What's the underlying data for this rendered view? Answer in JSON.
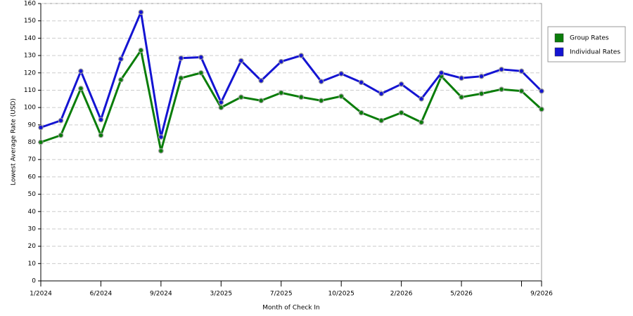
{
  "chart_data": {
    "type": "line",
    "x_label": "Month of Check In",
    "y_label": "Lowest Average Rate (USD)",
    "categories": [
      "1/2024",
      null,
      null,
      "6/2024",
      null,
      null,
      "9/2024",
      null,
      null,
      "3/2025",
      null,
      null,
      "7/2025",
      null,
      null,
      "10/2025",
      null,
      null,
      "2/2026",
      null,
      null,
      "5/2026",
      null,
      null,
      null,
      "9/2026"
    ],
    "series": [
      {
        "name": "Group Rates",
        "color": "#0a7d0a",
        "values": [
          80,
          84,
          111,
          84,
          116,
          133,
          75,
          117,
          120,
          100,
          106,
          104,
          108.5,
          106,
          104,
          106.5,
          97,
          92.5,
          97,
          91.5,
          118,
          106,
          108,
          110.5,
          109.5,
          99
        ]
      },
      {
        "name": "Individual Rates",
        "color": "#1414d2",
        "values": [
          88.5,
          92.5,
          121,
          93,
          128,
          155,
          83,
          128.5,
          129,
          103,
          127,
          115.5,
          126.5,
          130,
          115,
          119.5,
          114.5,
          108,
          113.5,
          105,
          120,
          117,
          118,
          122,
          121,
          109.5
        ]
      }
    ],
    "ylim": [
      0,
      160
    ],
    "yticks": [
      0,
      10,
      20,
      30,
      40,
      50,
      60,
      70,
      80,
      90,
      100,
      110,
      120,
      130,
      140,
      150,
      160
    ],
    "grid": true,
    "legend": "right"
  }
}
